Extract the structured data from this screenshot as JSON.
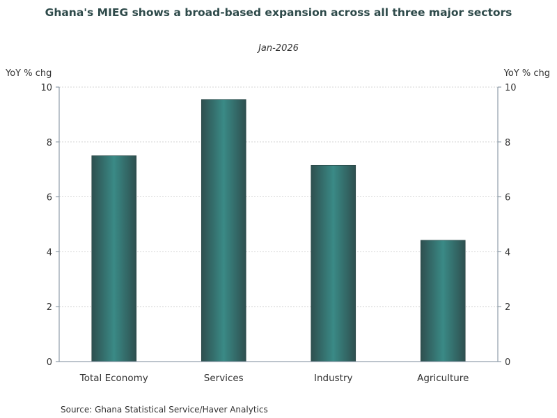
{
  "chart_data": {
    "type": "bar",
    "title": "Ghana's MIEG shows a broad-based expansion across all three major sectors",
    "subtitle": "Jan-2026",
    "ylabel_left": "YoY % chg",
    "ylabel_right": "YoY % chg",
    "categories": [
      "Total Economy",
      "Services",
      "Industry",
      "Agriculture"
    ],
    "values": [
      7.5,
      9.55,
      7.15,
      4.42
    ],
    "ylim": [
      0,
      10
    ],
    "yticks": [
      0,
      2,
      4,
      6,
      8,
      10
    ],
    "grid": true,
    "legend": "none",
    "bar_color_dark": "#2e4f4f",
    "bar_color_light": "#3a8a86",
    "source": "Source:  Ghana Statistical Service/Haver Analytics"
  }
}
